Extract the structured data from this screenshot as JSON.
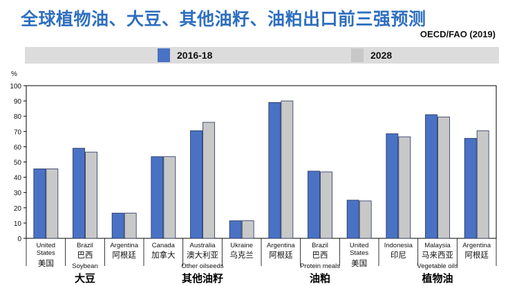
{
  "header": {
    "title": "全球植物油、大豆、其他油籽、油粕出口前三强预测",
    "source": "OECD/FAO (2019)"
  },
  "colors": {
    "series_2016": "#4a72c4",
    "series_2028": "#c8c8c8",
    "title": "#2f6fbf"
  },
  "chart_data": {
    "type": "bar",
    "title": "",
    "ylabel": "%",
    "ylim": [
      0,
      100
    ],
    "yticks": [
      0,
      10,
      20,
      30,
      40,
      50,
      60,
      70,
      80,
      90,
      100
    ],
    "legend_position": "top",
    "grid": false,
    "categories": [
      {
        "en": [
          "United",
          "States"
        ],
        "zh": "美国"
      },
      {
        "en": [
          "Brazil"
        ],
        "zh": "巴西"
      },
      {
        "en": [
          "Argentina"
        ],
        "zh": "阿根廷"
      },
      {
        "en": [
          "Canada"
        ],
        "zh": "加拿大"
      },
      {
        "en": [
          "Australia"
        ],
        "zh": "澳大利亚"
      },
      {
        "en": [
          "Ukraine"
        ],
        "zh": "乌克兰"
      },
      {
        "en": [
          "Argentina"
        ],
        "zh": "阿根廷"
      },
      {
        "en": [
          "Brazil"
        ],
        "zh": "巴西"
      },
      {
        "en": [
          "United",
          "States"
        ],
        "zh": "美国"
      },
      {
        "en": [
          "Indonesia"
        ],
        "zh": "印尼"
      },
      {
        "en": [
          "Malaysia"
        ],
        "zh": "马来西亚"
      },
      {
        "en": [
          "Argentina"
        ],
        "zh": "阿根廷"
      }
    ],
    "groups": [
      {
        "en": "Soybean",
        "zh": "大豆"
      },
      {
        "en": "Other oilseeds",
        "zh": "其他油籽"
      },
      {
        "en": "Protein meals",
        "zh": "油粕"
      },
      {
        "en": "Vegetable oils",
        "zh": "植物油"
      }
    ],
    "series": [
      {
        "name": "2016-18",
        "values": [
          45.5,
          59,
          16.5,
          53.5,
          70.5,
          11.5,
          89,
          44,
          25,
          68.5,
          81,
          65.5
        ]
      },
      {
        "name": "2028",
        "values": [
          45.5,
          56.5,
          16.5,
          53.5,
          76,
          11.5,
          90,
          43.5,
          24.5,
          66.5,
          79.5,
          70.5
        ]
      }
    ]
  }
}
